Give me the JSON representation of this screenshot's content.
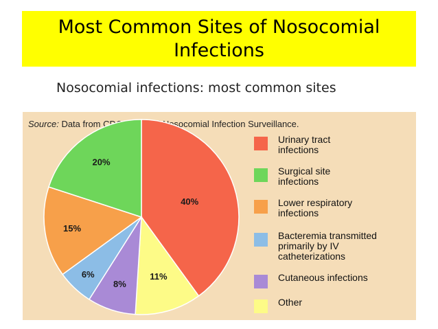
{
  "slide": {
    "title": "Most Common Sites of Nosocomial Infections"
  },
  "chart_data": {
    "type": "pie",
    "title": "Nosocomial infections: most common sites",
    "source_label": "Source:",
    "source_text": "Data from CDC, National Nosocomial Infection Surveillance.",
    "categories": [
      "Urinary tract infections",
      "Surgical site infections",
      "Lower respiratory infections",
      "Bacteremia transmitted primarily by IV catheterizations",
      "Cutaneous infections",
      "Other"
    ],
    "values": [
      40,
      20,
      15,
      6,
      8,
      11
    ],
    "labels": [
      "40%",
      "20%",
      "15%",
      "6%",
      "8%",
      "11%"
    ],
    "colors": [
      "#f5654a",
      "#6ed65a",
      "#f7a04a",
      "#8cbde6",
      "#a98ad6",
      "#fdfb87"
    ],
    "legend_position": "right"
  }
}
